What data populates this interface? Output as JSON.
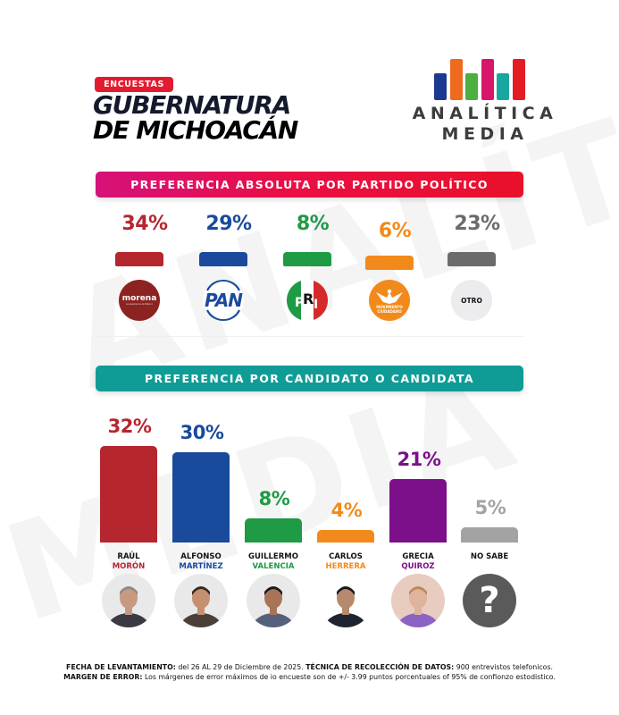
{
  "header": {
    "badge": "ENCUESTAS",
    "title_line1": "GUBERNATURA",
    "title_line2": "DE MICHOACÁN",
    "badge_color": "#e41b2f"
  },
  "logo": {
    "line1": "ANALÍTICA",
    "line2": "MEDIA",
    "bars": [
      {
        "color": "#1b3a8f",
        "height": 30
      },
      {
        "color": "#ee6a1f",
        "height": 46
      },
      {
        "color": "#4caf3f",
        "height": 30
      },
      {
        "color": "#d7166b",
        "height": 46
      },
      {
        "color": "#1aa6a0",
        "height": 30
      },
      {
        "color": "#e31c23",
        "height": 46
      }
    ]
  },
  "watermark": [
    "ANALÍTICA",
    "MEDIA"
  ],
  "sections": {
    "parties_title": "PREFERENCIA ABSOLUTA POR PARTIDO POLÍTICO",
    "candidates_title": "PREFERENCIA POR CANDIDATO O CANDIDATA"
  },
  "parties": [
    {
      "name": "morena",
      "logo_label": "morena",
      "logo_sub": "La esperanza de México",
      "pct": "34%",
      "value": 34,
      "color": "#b5262f"
    },
    {
      "name": "PAN",
      "logo_label": "PAN",
      "pct": "29%",
      "value": 29,
      "color": "#1a4a9b"
    },
    {
      "name": "PRI",
      "logo_label": "PRI",
      "pct": "8%",
      "value": 8,
      "color": "#1f9a45"
    },
    {
      "name": "Movimiento Ciudadano",
      "logo_label": "MOVIMIENTO CIUDADANO",
      "pct": "6%",
      "value": 6,
      "color": "#f28a1b"
    },
    {
      "name": "Otro",
      "logo_label": "OTRO",
      "pct": "23%",
      "value": 23,
      "color": "#6b6b6b"
    }
  ],
  "candidates": [
    {
      "first": "RAÚL",
      "last": "MORÓN",
      "pct": "32%",
      "value": 32,
      "color": "#b5262f",
      "photo": "person"
    },
    {
      "first": "ALFONSO",
      "last": "MARTÍNEZ",
      "pct": "30%",
      "value": 30,
      "color": "#1a4a9b",
      "photo": "person"
    },
    {
      "first": "GUILLERMO",
      "last": "VALENCIA",
      "pct": "8%",
      "value": 8,
      "color": "#1f9a45",
      "photo": "person"
    },
    {
      "first": "CARLOS",
      "last": "HERRERA",
      "pct": "4%",
      "value": 4,
      "color": "#f28a1b",
      "photo": "person"
    },
    {
      "first": "GRECIA",
      "last": "QUIROZ",
      "pct": "21%",
      "value": 21,
      "color": "#7c0f8a",
      "photo": "person"
    },
    {
      "first": "NO SABE",
      "last": "",
      "pct": "5%",
      "value": 5,
      "color": "#a3a3a3",
      "photo": "question-mark"
    }
  ],
  "footer": {
    "line1_label1": "FECHA DE LEVANTAMIENTO:",
    "line1_text1": " del  26 AL 29 de Diciembre de 2025. ",
    "line1_label2": "TÉCNICA DE RECOLECCIÓN DE DATOS:",
    "line1_text2": " 900 entrevistos telefonicos.",
    "line2_label": "MARGEN DE ERROR:",
    "line2_text": " Los márgenes de error máximos de io encueste son de +/- 3.99 puntos porcentuales of 95% de confionzo estodistico."
  },
  "chart_data": [
    {
      "type": "bar",
      "title": "PREFERENCIA ABSOLUTA POR PARTIDO POLÍTICO",
      "categories": [
        "Morena",
        "PAN",
        "PRI",
        "Movimiento Ciudadano",
        "Otro"
      ],
      "values": [
        34,
        29,
        8,
        6,
        23
      ],
      "colors": [
        "#b5262f",
        "#1a4a9b",
        "#1f9a45",
        "#f28a1b",
        "#6b6b6b"
      ],
      "unit": "%",
      "xlabel": "",
      "ylabel": "",
      "ylim": [
        0,
        100
      ],
      "grid": false,
      "legend": "none"
    },
    {
      "type": "bar",
      "title": "PREFERENCIA POR CANDIDATO O CANDIDATA",
      "categories": [
        "Raúl Morón",
        "Alfonso Martínez",
        "Guillermo Valencia",
        "Carlos Herrera",
        "Grecia Quiroz",
        "No sabe"
      ],
      "values": [
        32,
        30,
        8,
        4,
        21,
        5
      ],
      "colors": [
        "#b5262f",
        "#1a4a9b",
        "#1f9a45",
        "#f28a1b",
        "#7c0f8a",
        "#a3a3a3"
      ],
      "unit": "%",
      "xlabel": "",
      "ylabel": "",
      "ylim": [
        0,
        35
      ],
      "grid": false,
      "legend": "none"
    }
  ]
}
